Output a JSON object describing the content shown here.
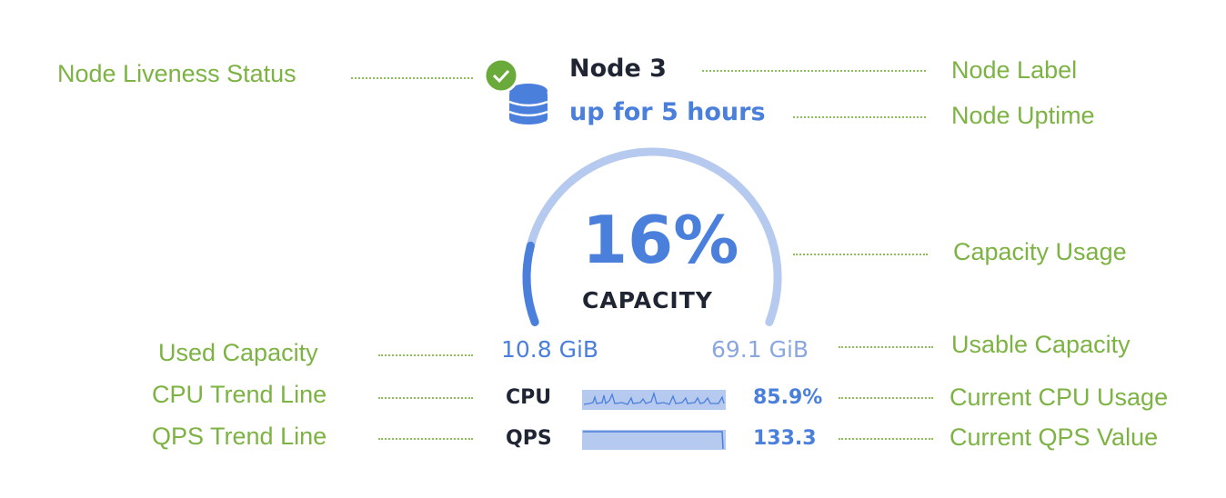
{
  "annotations": {
    "liveness": "Node Liveness Status",
    "label": "Node Label",
    "uptime": "Node Uptime",
    "capacity_usage": "Capacity Usage",
    "used_capacity": "Used Capacity",
    "usable_capacity": "Usable Capacity",
    "cpu_trend": "CPU Trend Line",
    "cpu_current": "Current CPU Usage",
    "qps_trend": "QPS Trend Line",
    "qps_current": "Current QPS Value"
  },
  "node": {
    "title": "Node 3",
    "uptime": "up for 5 hours",
    "status": "live",
    "icons": {
      "status": "check-circle-icon",
      "node": "database-icon"
    },
    "capacity_percent_label": "16%",
    "capacity_percent": 16,
    "capacity_label": "CAPACITY",
    "used": "10.8 GiB",
    "usable": "69.1 GiB",
    "cpu_label": "CPU",
    "cpu_value": "85.9%",
    "qps_label": "QPS",
    "qps_value": "133.3"
  },
  "colors": {
    "accent": "#4a7fdc",
    "track": "#b6c9ee",
    "annotation": "#7cb342",
    "status": "#6aaa3a"
  }
}
